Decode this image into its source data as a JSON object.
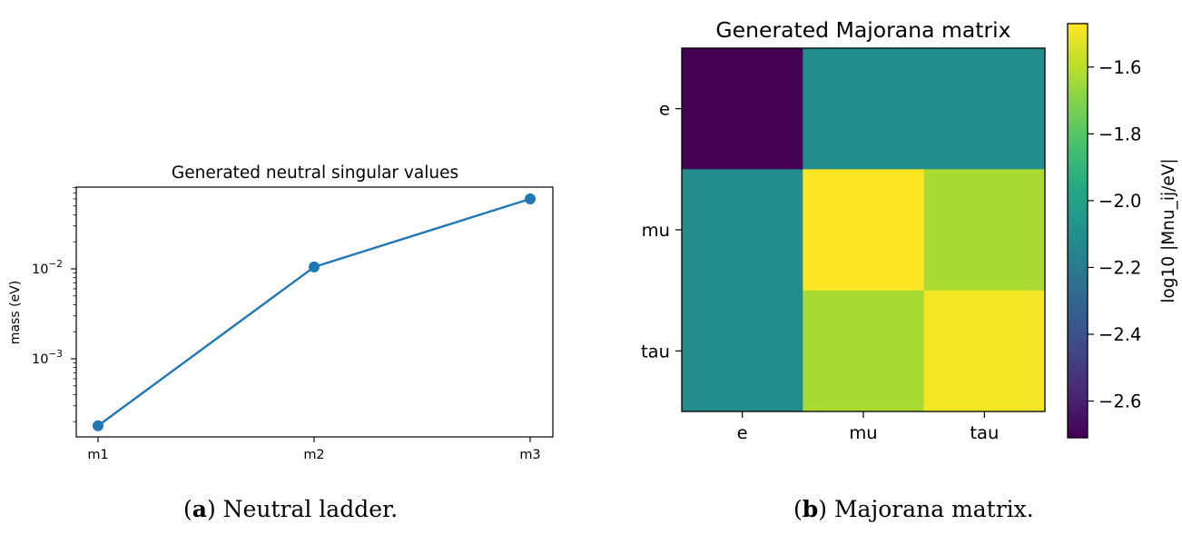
{
  "panel_a": {
    "caption_letter": "a",
    "caption_text": "Neutral ladder."
  },
  "panel_b": {
    "caption_letter": "b",
    "caption_text": "Majorana matrix."
  },
  "chart_data": [
    {
      "type": "line",
      "title": "Generated neutral singular values",
      "xlabel": "",
      "ylabel": "mass (eV)",
      "y_scale": "log",
      "y_tick_labels": [
        "10^-3",
        "10^-2"
      ],
      "categories": [
        "m1",
        "m2",
        "m3"
      ],
      "values": [
        0.00018,
        0.0105,
        0.06
      ],
      "color": "#1f77b4",
      "marker": "circle",
      "grid": false
    },
    {
      "type": "heatmap",
      "title": "Generated Majorana matrix",
      "x_categories": [
        "e",
        "mu",
        "tau"
      ],
      "y_categories": [
        "e",
        "mu",
        "tau"
      ],
      "values": [
        [
          -2.71,
          -2.11,
          -2.11
        ],
        [
          -2.11,
          -1.47,
          -1.63
        ],
        [
          -2.11,
          -1.63,
          -1.49
        ]
      ],
      "colormap": "viridis",
      "colorbar": {
        "label": "log10 |Mnu_ij/eV|",
        "ticks": [
          -1.6,
          -1.8,
          -2.0,
          -2.2,
          -2.4,
          -2.6
        ],
        "tick_labels": [
          "−1.6",
          "−1.8",
          "−2.0",
          "−2.2",
          "−2.4",
          "−2.6"
        ],
        "range": [
          -2.71,
          -1.47
        ]
      }
    }
  ]
}
